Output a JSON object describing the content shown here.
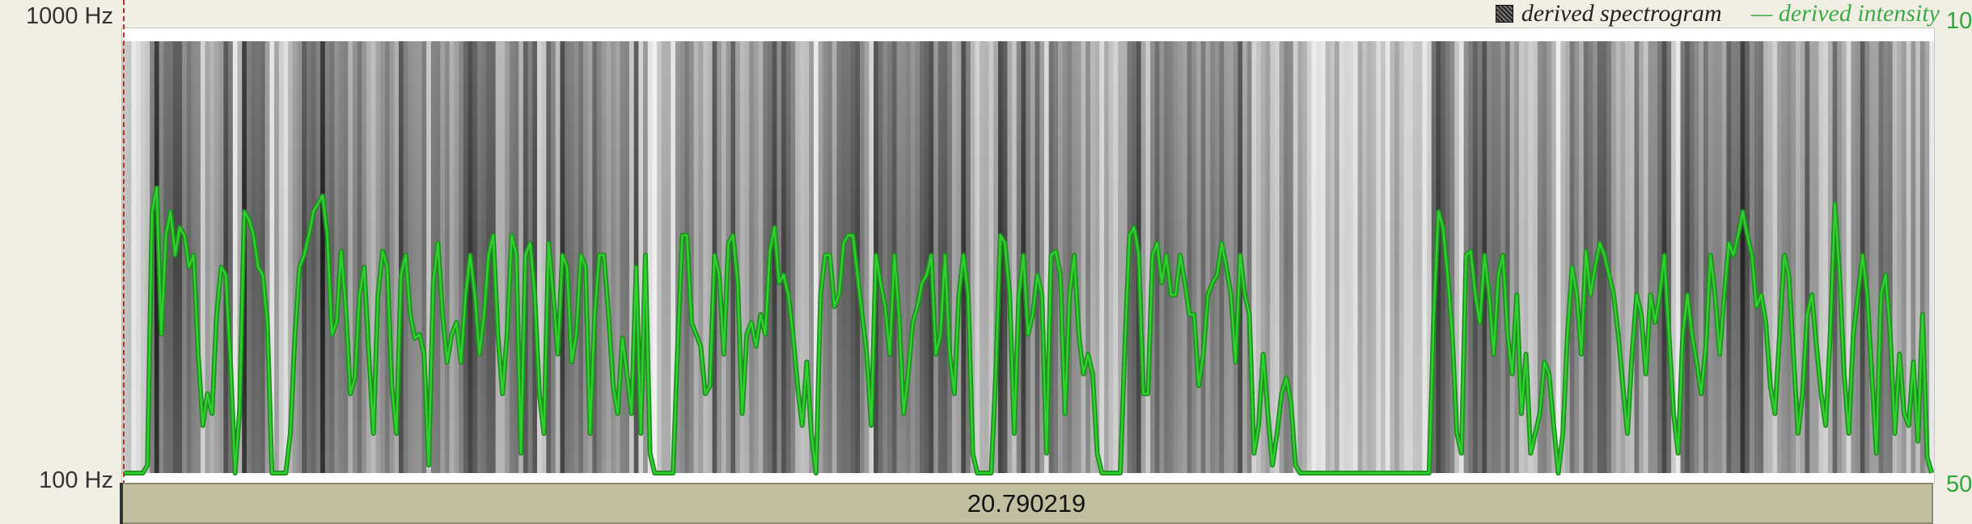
{
  "axis": {
    "left_top": "1000 Hz",
    "left_bottom": "100 Hz",
    "right_top": "10",
    "right_bottom": "50"
  },
  "legend": {
    "spectrogram_label": "derived spectrogram",
    "intensity_label": "— derived intensity"
  },
  "colors": {
    "intensity": "#2fd12f",
    "intensity_glow": "#1f8f1f",
    "spectrogram_dark": "#111111"
  },
  "selection": {
    "time_value": "20.790219"
  },
  "intensity_curve": [
    0,
    0,
    0,
    0,
    0,
    0.02,
    0.66,
    0.72,
    0.35,
    0.6,
    0.66,
    0.55,
    0.62,
    0.6,
    0.52,
    0.55,
    0.3,
    0.12,
    0.2,
    0.15,
    0.4,
    0.52,
    0.5,
    0.28,
    0,
    0.16,
    0.66,
    0.64,
    0.6,
    0.52,
    0.5,
    0.38,
    0,
    0,
    0,
    0,
    0.1,
    0.35,
    0.52,
    0.55,
    0.6,
    0.66,
    0.68,
    0.7,
    0.6,
    0.35,
    0.38,
    0.56,
    0.42,
    0.2,
    0.24,
    0.45,
    0.52,
    0.3,
    0.1,
    0.45,
    0.56,
    0.52,
    0.22,
    0.1,
    0.5,
    0.55,
    0.4,
    0.34,
    0.35,
    0.3,
    0.02,
    0.48,
    0.58,
    0.4,
    0.28,
    0.35,
    0.38,
    0.28,
    0.45,
    0.55,
    0.45,
    0.3,
    0.4,
    0.55,
    0.6,
    0.35,
    0.2,
    0.35,
    0.6,
    0.55,
    0.05,
    0.55,
    0.58,
    0.45,
    0.2,
    0.1,
    0.58,
    0.45,
    0.3,
    0.55,
    0.52,
    0.28,
    0.35,
    0.55,
    0.52,
    0.1,
    0.4,
    0.55,
    0.55,
    0.4,
    0.22,
    0.15,
    0.34,
    0.25,
    0.15,
    0.52,
    0.1,
    0.55,
    0.05,
    0,
    0,
    0,
    0,
    0,
    0.32,
    0.6,
    0.6,
    0.38,
    0.35,
    0.32,
    0.2,
    0.22,
    0.55,
    0.5,
    0.3,
    0.58,
    0.6,
    0.48,
    0.15,
    0.35,
    0.38,
    0.32,
    0.4,
    0.35,
    0.56,
    0.62,
    0.48,
    0.5,
    0.45,
    0.35,
    0.22,
    0.12,
    0.28,
    0.1,
    0,
    0.45,
    0.55,
    0.55,
    0.42,
    0.45,
    0.58,
    0.6,
    0.6,
    0.5,
    0.4,
    0.3,
    0.12,
    0.55,
    0.48,
    0.42,
    0.3,
    0.55,
    0.4,
    0.15,
    0.25,
    0.38,
    0.42,
    0.48,
    0.5,
    0.55,
    0.3,
    0.35,
    0.55,
    0.3,
    0.2,
    0.45,
    0.55,
    0.45,
    0.05,
    0,
    0,
    0,
    0,
    0.25,
    0.6,
    0.58,
    0.45,
    0.1,
    0.45,
    0.55,
    0.35,
    0.4,
    0.5,
    0.45,
    0.05,
    0.55,
    0.56,
    0.5,
    0.15,
    0.45,
    0.55,
    0.35,
    0.25,
    0.3,
    0.25,
    0.05,
    0,
    0,
    0,
    0,
    0,
    0.32,
    0.6,
    0.62,
    0.55,
    0.2,
    0.2,
    0.55,
    0.58,
    0.48,
    0.55,
    0.45,
    0.45,
    0.55,
    0.48,
    0.4,
    0.4,
    0.22,
    0.3,
    0.45,
    0.48,
    0.5,
    0.58,
    0.52,
    0.45,
    0.28,
    0.55,
    0.45,
    0.4,
    0.05,
    0.12,
    0.3,
    0.15,
    0.02,
    0.1,
    0.2,
    0.24,
    0.18,
    0.02,
    0,
    0,
    0,
    0,
    0,
    0,
    0,
    0,
    0,
    0,
    0,
    0,
    0,
    0,
    0,
    0,
    0,
    0,
    0,
    0,
    0,
    0,
    0,
    0,
    0,
    0,
    0,
    0,
    0,
    0.4,
    0.66,
    0.62,
    0.5,
    0.35,
    0.1,
    0.05,
    0.55,
    0.56,
    0.45,
    0.38,
    0.55,
    0.45,
    0.3,
    0.5,
    0.55,
    0.35,
    0.25,
    0.45,
    0.15,
    0.3,
    0.05,
    0.1,
    0.15,
    0.28,
    0.25,
    0.12,
    0,
    0.1,
    0.35,
    0.52,
    0.45,
    0.3,
    0.56,
    0.45,
    0.52,
    0.58,
    0.55,
    0.5,
    0.45,
    0.35,
    0.22,
    0.1,
    0.3,
    0.45,
    0.4,
    0.25,
    0.45,
    0.38,
    0.45,
    0.55,
    0.35,
    0.15,
    0.05,
    0.35,
    0.45,
    0.35,
    0.28,
    0.2,
    0.32,
    0.55,
    0.45,
    0.3,
    0.45,
    0.58,
    0.55,
    0.6,
    0.66,
    0.6,
    0.55,
    0.42,
    0.45,
    0.38,
    0.22,
    0.15,
    0.35,
    0.55,
    0.5,
    0.3,
    0.1,
    0.2,
    0.4,
    0.45,
    0.32,
    0.2,
    0.12,
    0.35,
    0.68,
    0.5,
    0.25,
    0.1,
    0.35,
    0.45,
    0.55,
    0.45,
    0.25,
    0.05,
    0.45,
    0.5,
    0.35,
    0.1,
    0.3,
    0.15,
    0.12,
    0.28,
    0.08,
    0.4,
    0.04,
    0
  ]
}
